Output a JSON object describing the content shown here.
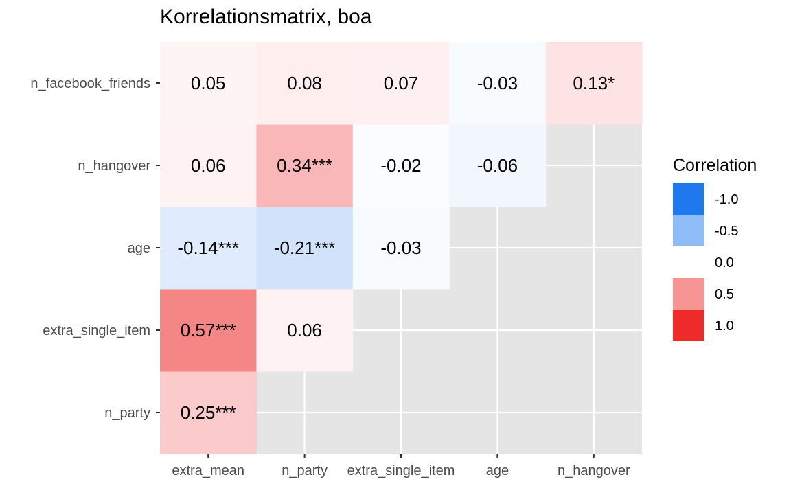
{
  "chart_data": {
    "type": "heatmap",
    "title": "Korrelationsmatrix, boa",
    "x_categories": [
      "extra_mean",
      "n_party",
      "extra_single_item",
      "age",
      "n_hangover"
    ],
    "y_categories": [
      "n_party",
      "extra_single_item",
      "age",
      "n_hangover",
      "n_facebook_friends"
    ],
    "cells": [
      {
        "x": "extra_mean",
        "y": "n_party",
        "value": 0.25,
        "label": "0.25***"
      },
      {
        "x": "extra_mean",
        "y": "extra_single_item",
        "value": 0.57,
        "label": "0.57***"
      },
      {
        "x": "n_party",
        "y": "extra_single_item",
        "value": 0.06,
        "label": "0.06"
      },
      {
        "x": "extra_mean",
        "y": "age",
        "value": -0.14,
        "label": "-0.14***"
      },
      {
        "x": "n_party",
        "y": "age",
        "value": -0.21,
        "label": "-0.21***"
      },
      {
        "x": "extra_single_item",
        "y": "age",
        "value": -0.03,
        "label": "-0.03"
      },
      {
        "x": "extra_mean",
        "y": "n_hangover",
        "value": 0.06,
        "label": "0.06"
      },
      {
        "x": "n_party",
        "y": "n_hangover",
        "value": 0.34,
        "label": "0.34***"
      },
      {
        "x": "extra_single_item",
        "y": "n_hangover",
        "value": -0.02,
        "label": "-0.02"
      },
      {
        "x": "age",
        "y": "n_hangover",
        "value": -0.06,
        "label": "-0.06"
      },
      {
        "x": "extra_mean",
        "y": "n_facebook_friends",
        "value": 0.05,
        "label": "0.05"
      },
      {
        "x": "n_party",
        "y": "n_facebook_friends",
        "value": 0.08,
        "label": "0.08"
      },
      {
        "x": "extra_single_item",
        "y": "n_facebook_friends",
        "value": 0.07,
        "label": "0.07"
      },
      {
        "x": "age",
        "y": "n_facebook_friends",
        "value": -0.03,
        "label": "-0.03"
      },
      {
        "x": "n_hangover",
        "y": "n_facebook_friends",
        "value": 0.13,
        "label": "0.13*"
      }
    ],
    "color_scale": {
      "domain": [
        -1,
        1
      ],
      "low": "#1f78ee",
      "mid": "#ffffff",
      "high": "#ee2a2a"
    },
    "legend": {
      "title": "Correlation",
      "breaks": [
        {
          "label": "-1.0",
          "value": -1.0
        },
        {
          "label": "-0.5",
          "value": -0.5
        },
        {
          "label": "0.0",
          "value": 0.0
        },
        {
          "label": "0.5",
          "value": 0.5
        },
        {
          "label": "1.0",
          "value": 1.0
        }
      ],
      "placement": "right"
    },
    "panel_background": "#e5e5e5",
    "grid": true
  }
}
